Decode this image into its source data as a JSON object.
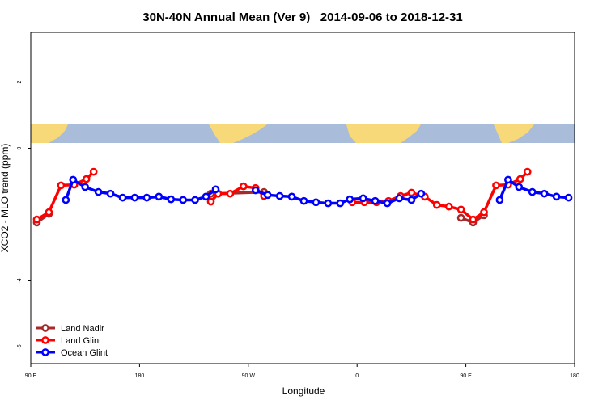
{
  "chart_data": {
    "type": "line",
    "title": "30N-40N Annual Mean (Ver 9)   2014-09-06 to 2018-12-31",
    "xlabel": "Longitude",
    "ylabel": "XCO2 - MLO trend (ppm)",
    "xlim": [
      90,
      540
    ],
    "xticks": [
      {
        "value": 90,
        "label": "90 E"
      },
      180,
      {
        "value": 270,
        "label": "90 W"
      },
      {
        "value": 360,
        "label": "0"
      },
      {
        "value": 450,
        "label": "90 E"
      },
      {
        "value": 540,
        "label": "180"
      }
    ],
    "ylim": [
      -6.5,
      3.5
    ],
    "yticks": [
      2,
      0,
      -4,
      -6
    ],
    "legend": "bottom-left",
    "series": [
      {
        "name": "Land Nadir",
        "color": "#a52a2a",
        "x": [
          95,
          105,
          null,
          239,
          245,
          283,
          null,
          446,
          456,
          465
        ],
        "values": [
          -2.24,
          -1.98,
          null,
          -1.37,
          -1.37,
          -1.32,
          null,
          -2.1,
          -2.24,
          -2.02
        ]
      },
      {
        "name": "Land Glint",
        "color": "#ff0000",
        "x": [
          95,
          105,
          115,
          126,
          136,
          142,
          null,
          239,
          245,
          255,
          266,
          276,
          283,
          null,
          356,
          366,
          376,
          386,
          396,
          405,
          416,
          426,
          436,
          446,
          456,
          465,
          475,
          485,
          495,
          501
        ],
        "values": [
          -2.15,
          -1.93,
          -1.12,
          -1.1,
          -0.93,
          -0.71,
          null,
          -1.61,
          -1.37,
          -1.37,
          -1.15,
          -1.2,
          -1.44,
          null,
          -1.63,
          -1.63,
          -1.63,
          -1.59,
          -1.44,
          -1.34,
          -1.46,
          -1.71,
          -1.76,
          -1.85,
          -2.15,
          -1.93,
          -1.12,
          -1.1,
          -0.93,
          -0.71
        ]
      },
      {
        "name": "Ocean Glint",
        "color": "#0000ff",
        "x": [
          119,
          125,
          135,
          146,
          156,
          166,
          176,
          186,
          196,
          206,
          216,
          226,
          235,
          243,
          null,
          276,
          286,
          296,
          306,
          316,
          326,
          336,
          346,
          354,
          365,
          375,
          385,
          395,
          405,
          413,
          null,
          478,
          485,
          494,
          505,
          515,
          525,
          535
        ],
        "values": [
          -1.56,
          -0.95,
          -1.17,
          -1.32,
          -1.37,
          -1.49,
          -1.49,
          -1.49,
          -1.46,
          -1.54,
          -1.56,
          -1.56,
          -1.46,
          -1.24,
          null,
          -1.27,
          -1.41,
          -1.44,
          -1.46,
          -1.59,
          -1.63,
          -1.66,
          -1.66,
          -1.54,
          -1.51,
          -1.59,
          -1.66,
          -1.51,
          -1.56,
          -1.37,
          null,
          -1.56,
          -0.95,
          -1.17,
          -1.32,
          -1.37,
          -1.46,
          -1.49
        ]
      }
    ]
  }
}
